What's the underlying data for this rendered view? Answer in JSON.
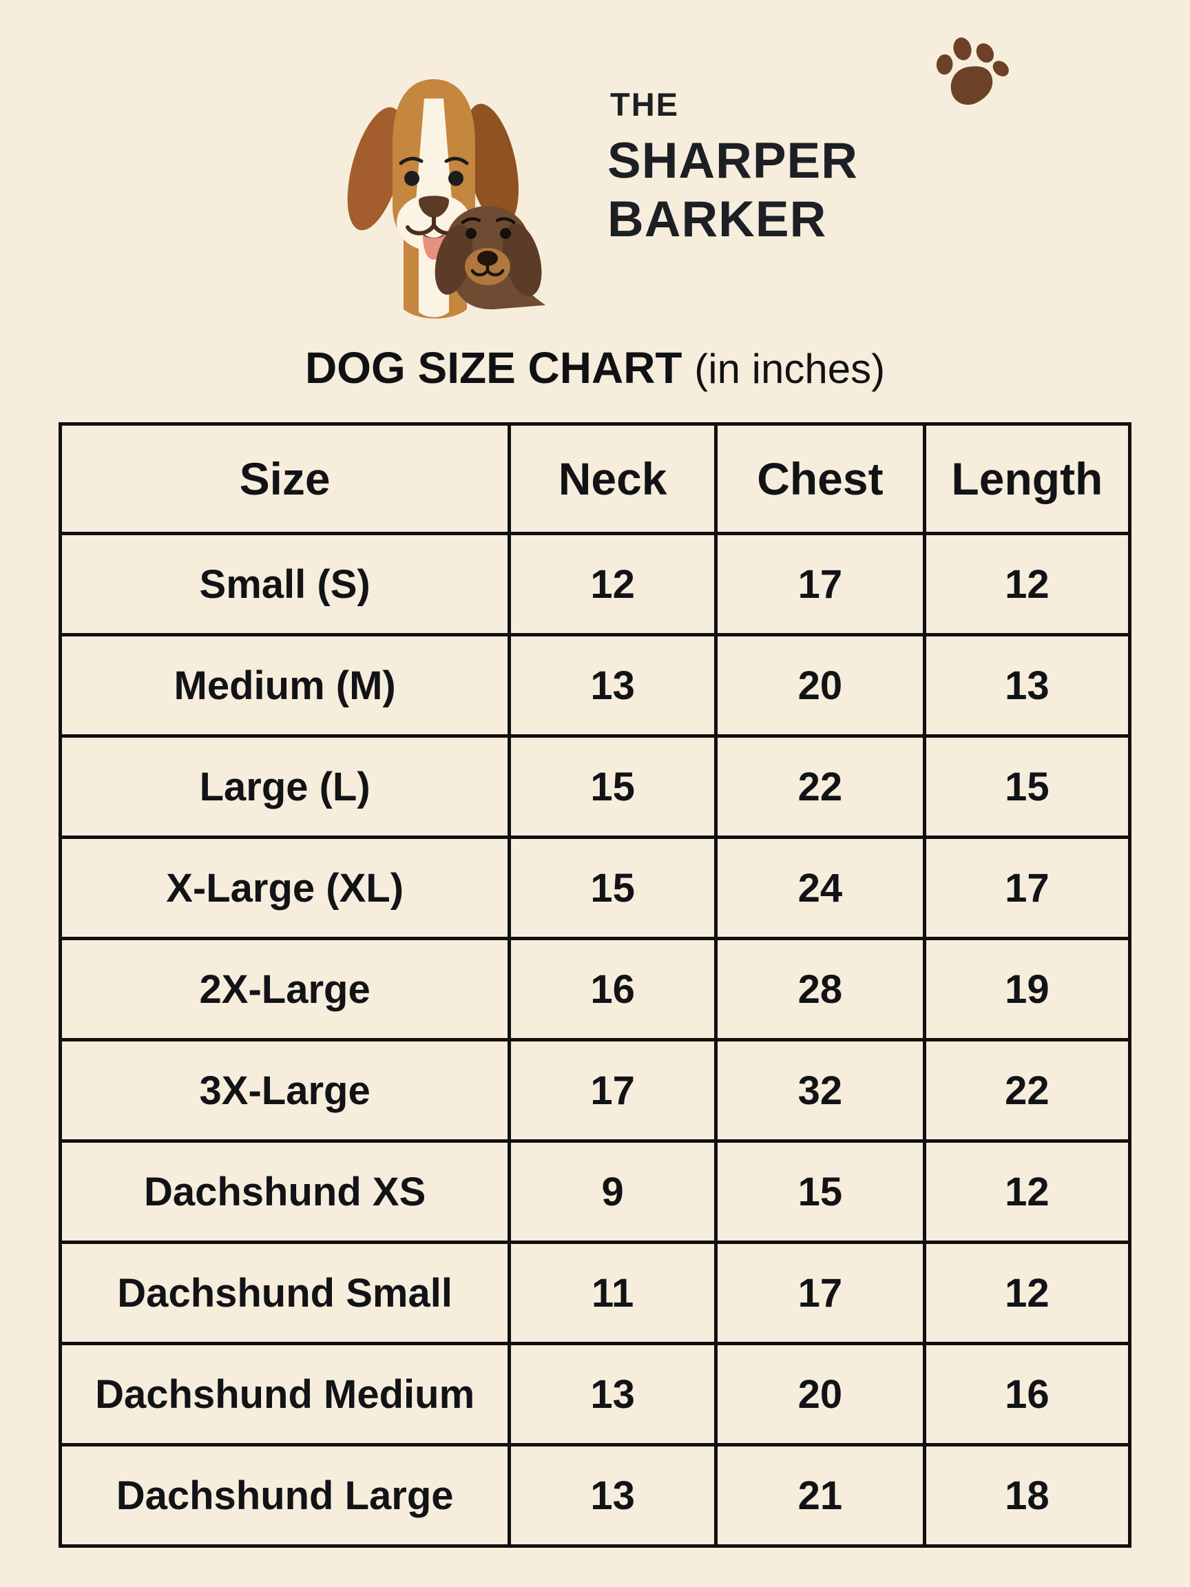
{
  "page": {
    "background_color": "#F7EDDC",
    "text_color": "#121316",
    "table_border_color": "#101010"
  },
  "brand": {
    "line1": "THE",
    "line2": "SHARPER",
    "line3": "BARKER",
    "logo_colors": {
      "beagle_head": "#C5863E",
      "beagle_left_ear": "#A45E2D",
      "beagle_right_ear": "#8E5223",
      "beagle_blaze": "#FBF3E3",
      "beagle_nose": "#5B3A26",
      "tongue": "#E8907E",
      "dachshund_body": "#6F4B33",
      "dachshund_ear": "#5C3C29",
      "dachshund_muzzle": "#B0773E",
      "paw_print": "#6B4227"
    }
  },
  "title": {
    "main": "DOG SIZE CHART",
    "suffix": "(in inches)"
  },
  "chart_data": {
    "type": "table",
    "title": "DOG SIZE CHART (in inches)",
    "columns": [
      "Size",
      "Neck",
      "Chest",
      "Length"
    ],
    "rows": [
      [
        "Small (S)",
        12,
        17,
        12
      ],
      [
        "Medium (M)",
        13,
        20,
        13
      ],
      [
        "Large (L)",
        15,
        22,
        15
      ],
      [
        "X-Large (XL)",
        15,
        24,
        17
      ],
      [
        "2X-Large",
        16,
        28,
        19
      ],
      [
        "3X-Large",
        17,
        32,
        22
      ],
      [
        "Dachshund XS",
        9,
        15,
        12
      ],
      [
        "Dachshund Small",
        11,
        17,
        12
      ],
      [
        "Dachshund Medium",
        13,
        20,
        16
      ],
      [
        "Dachshund Large",
        13,
        21,
        18
      ]
    ]
  }
}
